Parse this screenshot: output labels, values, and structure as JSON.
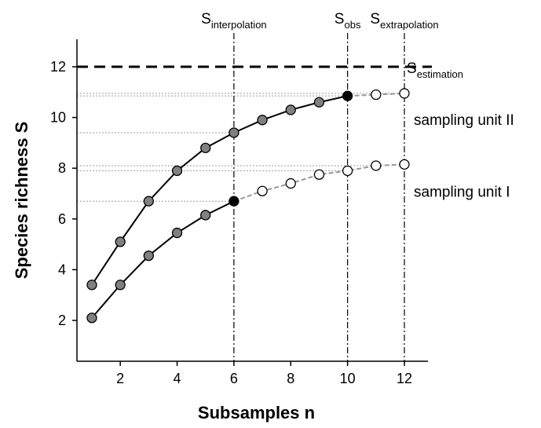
{
  "chart_data": {
    "type": "line",
    "title": "",
    "xlabel": "Subsamples n",
    "ylabel": "Species richness S",
    "xlim": [
      0.5,
      13
    ],
    "ylim": [
      1.5,
      13
    ],
    "xticks": [
      2,
      4,
      6,
      8,
      10,
      12
    ],
    "yticks": [
      2,
      4,
      6,
      8,
      10,
      12
    ],
    "grid": false,
    "series": [
      {
        "name": "sampling unit II",
        "x": [
          1,
          2,
          3,
          4,
          5,
          6,
          7,
          8,
          9,
          10,
          11,
          12
        ],
        "y": [
          3.4,
          5.1,
          6.7,
          7.9,
          8.8,
          9.4,
          9.9,
          10.3,
          10.6,
          10.85,
          10.9,
          10.95
        ],
        "observed_until": 10
      },
      {
        "name": "sampling unit I",
        "x": [
          1,
          2,
          3,
          4,
          5,
          6,
          7,
          8,
          9,
          10,
          11,
          12
        ],
        "y": [
          2.1,
          3.4,
          4.55,
          5.45,
          6.15,
          6.7,
          7.1,
          7.4,
          7.75,
          7.9,
          8.1,
          8.15
        ],
        "observed_until": 6
      }
    ],
    "vertical_markers": [
      {
        "x": 6,
        "label": "S",
        "subscript": "interpolation"
      },
      {
        "x": 10,
        "label": "S",
        "subscript": "obs"
      },
      {
        "x": 12,
        "label": "S",
        "subscript": "extrapolation"
      }
    ],
    "horizontal_marker": {
      "y": 12,
      "label": "S",
      "subscript": "estimation"
    },
    "reference_levels": [
      10.95,
      10.85,
      9.4,
      8.1,
      7.9,
      6.7
    ],
    "colors": {
      "observed_line": "#000000",
      "extrapolated_line": "#999999",
      "filled_point": "#808080",
      "anchor_point": "#000000",
      "open_point": "#ffffff",
      "reference_lines": "#9a9a9a"
    }
  }
}
